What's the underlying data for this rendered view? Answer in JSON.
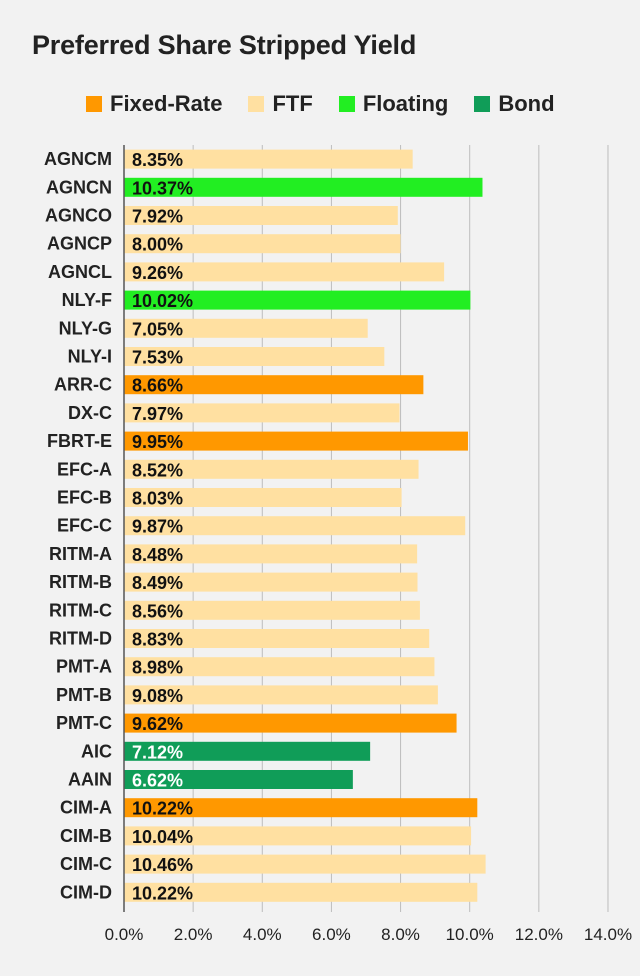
{
  "chart_data": {
    "type": "bar",
    "orientation": "horizontal",
    "title": "Preferred Share Stripped Yield",
    "xlim": [
      0,
      14
    ],
    "x_ticks": [
      "0.0%",
      "2.0%",
      "4.0%",
      "6.0%",
      "8.0%",
      "10.0%",
      "12.0%",
      "14.0%"
    ],
    "grid": "vertical",
    "legend_position": "top",
    "legend": [
      {
        "key": "fixed",
        "label": "Fixed-Rate",
        "color": "#ff9800"
      },
      {
        "key": "ftf",
        "label": "FTF",
        "color": "#ffe0a1"
      },
      {
        "key": "floating",
        "label": "Floating",
        "color": "#22ee22"
      },
      {
        "key": "bond",
        "label": "Bond",
        "color": "#109d58"
      }
    ],
    "categories": [
      "AGNCM",
      "AGNCN",
      "AGNCO",
      "AGNCP",
      "AGNCL",
      "NLY-F",
      "NLY-G",
      "NLY-I",
      "ARR-C",
      "DX-C",
      "FBRT-E",
      "EFC-A",
      "EFC-B",
      "EFC-C",
      "RITM-A",
      "RITM-B",
      "RITM-C",
      "RITM-D",
      "PMT-A",
      "PMT-B",
      "PMT-C",
      "AIC",
      "AAIN",
      "CIM-A",
      "CIM-B",
      "CIM-C",
      "CIM-D"
    ],
    "values": [
      8.35,
      10.37,
      7.92,
      8.0,
      9.26,
      10.02,
      7.05,
      7.53,
      8.66,
      7.97,
      9.95,
      8.52,
      8.03,
      9.87,
      8.48,
      8.49,
      8.56,
      8.83,
      8.98,
      9.08,
      9.62,
      7.12,
      6.62,
      10.22,
      10.04,
      10.46,
      10.22
    ],
    "value_labels": [
      "8.35%",
      "10.37%",
      "7.92%",
      "8.00%",
      "9.26%",
      "10.02%",
      "7.05%",
      "7.53%",
      "8.66%",
      "7.97%",
      "9.95%",
      "8.52%",
      "8.03%",
      "9.87%",
      "8.48%",
      "8.49%",
      "8.56%",
      "8.83%",
      "8.98%",
      "9.08%",
      "9.62%",
      "7.12%",
      "6.62%",
      "10.22%",
      "10.04%",
      "10.46%",
      "10.22%"
    ],
    "types": [
      "ftf",
      "floating",
      "ftf",
      "ftf",
      "ftf",
      "floating",
      "ftf",
      "ftf",
      "fixed",
      "ftf",
      "fixed",
      "ftf",
      "ftf",
      "ftf",
      "ftf",
      "ftf",
      "ftf",
      "ftf",
      "ftf",
      "ftf",
      "fixed",
      "bond",
      "bond",
      "fixed",
      "ftf",
      "ftf",
      "ftf"
    ],
    "label_colors": {
      "fixed": "#111111",
      "ftf": "#111111",
      "floating": "#111111",
      "bond": "#ffffff"
    },
    "gridline_color": "#bdbdbd",
    "axis_color": "#555555"
  }
}
